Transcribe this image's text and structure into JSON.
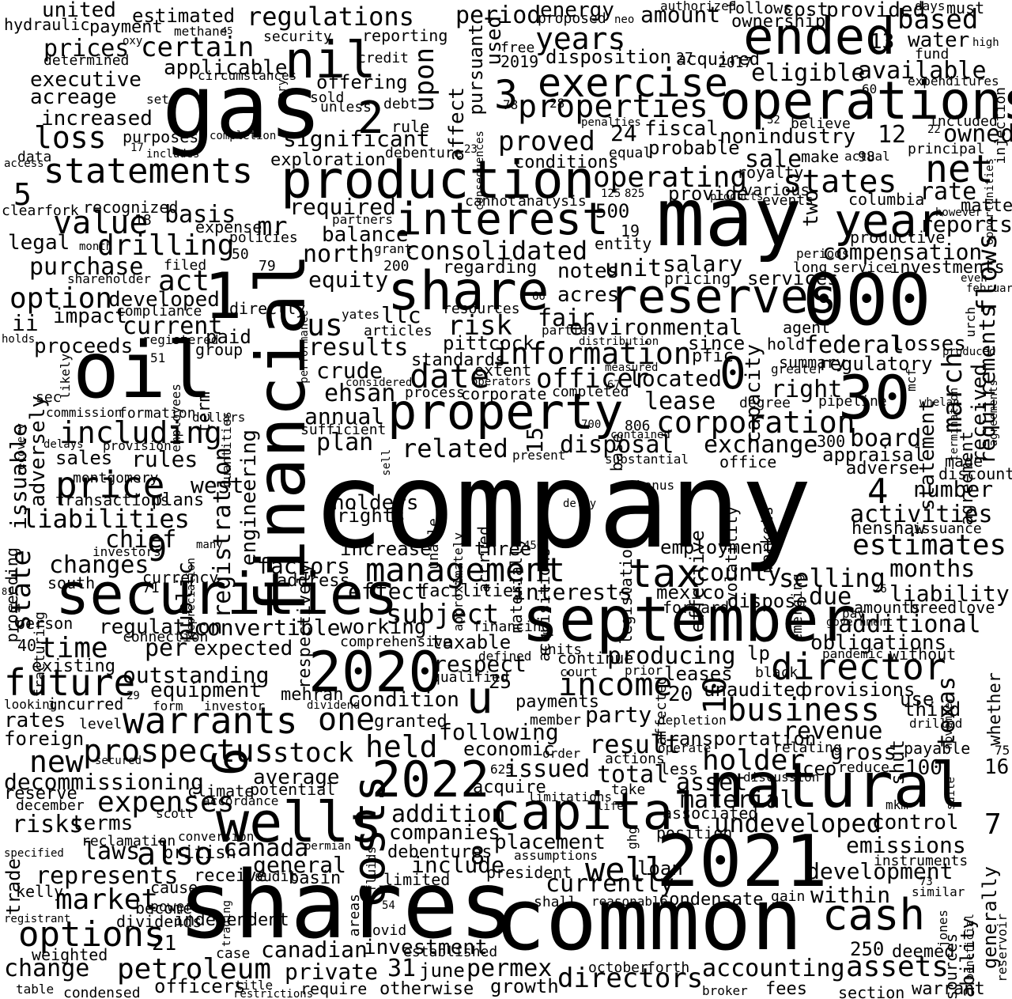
{
  "background": "#ffffff",
  "text_color": "#000000",
  "words": [
    "company",
    "shares",
    "common",
    "gas",
    "may",
    "oil",
    "financial",
    "000",
    "securities",
    "september",
    "natural",
    "2021",
    "production",
    "operations",
    "share",
    "property",
    "wells",
    "2020",
    "capital",
    "reserves",
    "interest",
    "exercise",
    "shares",
    "statements",
    "2022",
    "warrants",
    "30",
    "ended",
    "year",
    "cash",
    "nil",
    "costs",
    "1",
    "prospectus",
    "future",
    "u",
    "director",
    "tax",
    "management",
    "properties",
    "price",
    "options",
    "petroleum",
    "drilling",
    "including",
    "income",
    "corporation",
    "date",
    "information",
    "business",
    "consolidated",
    "subject",
    "value",
    "new",
    "operating",
    "net",
    "directors",
    "held",
    "holder",
    "also",
    "undeveloped",
    "stock",
    "market",
    "well",
    "assets",
    "2",
    "3",
    "0",
    "time",
    "loss",
    "registration",
    "engineering",
    "issuable",
    "risk",
    "officer",
    "estimates",
    "expenses",
    "certain",
    "regulations",
    "period",
    "energy",
    "based",
    "water",
    "executive",
    "prices",
    "united",
    "estimated",
    "amount",
    "acreage",
    "years",
    "proved",
    "upon",
    "significant",
    "act",
    "equity",
    "notes",
    "unit",
    "acres",
    "salary",
    "environmental",
    "federal",
    "regulatory",
    "march",
    "requirements",
    "statement",
    "agreement",
    "generally",
    "ability",
    "months",
    "liability",
    "additional",
    "obligations",
    "whether",
    "texas",
    "provisions",
    "revenue",
    "gross",
    "shut",
    "total",
    "issued",
    "acquire",
    "average",
    "decommissioning",
    "risks",
    "terms",
    "laws",
    "canada",
    "represents",
    "independent",
    "investment",
    "canadian",
    "private",
    "june",
    "permex",
    "accounting",
    "officers",
    "change",
    "weighted",
    "dividends",
    "currently",
    "development",
    "within",
    "emissions",
    "control",
    "companies",
    "placement",
    "addition",
    "include",
    "general",
    "receive",
    "convertible",
    "regulation",
    "working",
    "expected",
    "producing",
    "respect",
    "taxable",
    "per",
    "equipment",
    "outstanding",
    "condition",
    "one",
    "following",
    "economic",
    "result",
    "payments",
    "party",
    "use",
    "rates",
    "foreign",
    "rules",
    "plan",
    "related",
    "disposal",
    "exchange",
    "board",
    "appraisal",
    "adverse",
    "number",
    "activities",
    "employment",
    "selling",
    "county",
    "due",
    "interests",
    "mexico",
    "effect",
    "facilities",
    "factors",
    "address",
    "increase",
    "three",
    "chief",
    "changes",
    "liabilities",
    "sales",
    "transactions",
    "plans",
    "west",
    "state",
    "adversely",
    "ii",
    "impact",
    "current",
    "proceeds",
    "crude",
    "results",
    "ehsan",
    "annual",
    "pittcock",
    "fair",
    "llc",
    "us",
    "developed",
    "option",
    "purchase",
    "legal",
    "basis",
    "mr",
    "required",
    "balance",
    "north",
    "entity",
    "compensation",
    "flows",
    "reports",
    "productive",
    "rate",
    "columbia",
    "states",
    "owned",
    "sale",
    "nonindustry",
    "fiscal",
    "probable",
    "royalty",
    "various",
    "provide",
    "two",
    "located",
    "lease",
    "right",
    "capacity",
    "located",
    "services",
    "investments",
    "pricing",
    "agent",
    "losses",
    "received",
    "hold",
    "summary",
    "since",
    "pfic",
    "whelan",
    "henshaw",
    "issuance",
    "emerging",
    "markets",
    "bonus",
    "volatility",
    "effective",
    "legislation",
    "base",
    "substantial",
    "contained",
    "delay",
    "acquisitions",
    "materially",
    "accrued",
    "approximately",
    "unable",
    "holders",
    "rights",
    "respectively",
    "sufficient",
    "dollars",
    "formation",
    "commission",
    "employees",
    "quantities",
    "public",
    "term",
    "depreciation",
    "currency",
    "many",
    "paid",
    "group",
    "registered",
    "holds",
    "compliance",
    "investors",
    "proceeding",
    "fracturing",
    "south",
    "person",
    "connection",
    "existing",
    "incurred",
    "looking",
    "form",
    "investor",
    "dividend",
    "mehran",
    "granted",
    "member",
    "order",
    "actions",
    "climate",
    "potential",
    "accordance",
    "reclamation",
    "british",
    "scott",
    "conversion",
    "permian",
    "audit",
    "basin",
    "cause",
    "become",
    "power",
    "trading",
    "areas",
    "covid",
    "established",
    "case",
    "title",
    "restrictions",
    "require",
    "otherwise",
    "growth",
    "october",
    "forth",
    "broker",
    "fees",
    "section",
    "warrant",
    "deemed",
    "sources",
    "beneficial",
    "reservoir",
    "similar",
    "jones",
    "gain",
    "condensate",
    "loan",
    "president",
    "shall",
    "reasonable",
    "limitations",
    "assumptions",
    "instruments",
    "mkm",
    "position",
    "associated",
    "material",
    "asset",
    "less",
    "ceo",
    "reduce",
    "discussion",
    "take",
    "life",
    "operate",
    "transportation",
    "relating",
    "payable",
    "suite",
    "depletion",
    "drilled",
    "third",
    "november",
    "affected",
    "leases",
    "unaudited",
    "black",
    "prior",
    "court",
    "continue",
    "units",
    "defined",
    "qualified",
    "comprehensive",
    "financing",
    "amounts",
    "breedlove",
    "pay",
    "government",
    "pandemic",
    "without",
    "lp",
    "forward",
    "dispose",
    "hydraulic",
    "payment",
    "methane",
    "security",
    "authorized",
    "follows",
    "ownership",
    "cost",
    "provided",
    "days",
    "must",
    "high",
    "fund",
    "injection",
    "expenditures",
    "included",
    "principal",
    "opportunities",
    "however",
    "matters",
    "periods",
    "long",
    "service",
    "even",
    "february",
    "urch",
    "produced",
    "greater",
    "mcf",
    "termination",
    "agreements",
    "discounted",
    "made",
    "office",
    "pipeline",
    "degree",
    "measured",
    "completed",
    "extent",
    "operators",
    "distribution",
    "standards",
    "parties",
    "regarding",
    "resources",
    "analysis",
    "cannot",
    "events",
    "products",
    "make",
    "actual",
    "believe",
    "penalties",
    "equal",
    "conditions",
    "exploration",
    "completion",
    "purposes",
    "includes",
    "data",
    "access",
    "clearfork",
    "recognized",
    "expense",
    "policies",
    "month",
    "shareholder",
    "filed",
    "grant",
    "partners",
    "directly",
    "yates",
    "articles",
    "performance",
    "considered",
    "process",
    "corporate",
    "likely",
    "sec",
    "recovery",
    "provision",
    "delays",
    "montgomery",
    "registrant",
    "kelly",
    "trade",
    "specified",
    "reserve",
    "december",
    "secured",
    "level",
    "looking",
    "table",
    "condensed",
    "oxy",
    "determined",
    "credit",
    "debt",
    "sold",
    "unless",
    "rule",
    "debenture",
    "debentures",
    "fluids",
    "limited",
    "consequences",
    "free",
    "used",
    "pursuant",
    "affect",
    "acquired",
    "disposition",
    "proposed",
    "neo",
    "circumstances",
    "mary",
    "set",
    "offering",
    "reporting",
    "applicable",
    "eligible",
    "available",
    "increased",
    "sell",
    "present",
    "present",
    "equity",
    "ghg",
    "pricing",
    "alpha"
  ],
  "numbers": [
    "1",
    "2",
    "3",
    "4",
    "5",
    "6",
    "7",
    "8",
    "9",
    "10",
    "12",
    "13",
    "14",
    "15",
    "16",
    "17",
    "18",
    "19",
    "20",
    "21",
    "22",
    "23",
    "24",
    "25",
    "26",
    "27",
    "28",
    "29",
    "31",
    "32",
    "40",
    "45",
    "50",
    "51",
    "54",
    "60",
    "66",
    "67",
    "71",
    "73",
    "75",
    "78",
    "79",
    "81",
    "98",
    "100",
    "125",
    "200",
    "250",
    "300",
    "456",
    "500",
    "625",
    "700",
    "806",
    "825",
    "2017",
    "2019"
  ]
}
